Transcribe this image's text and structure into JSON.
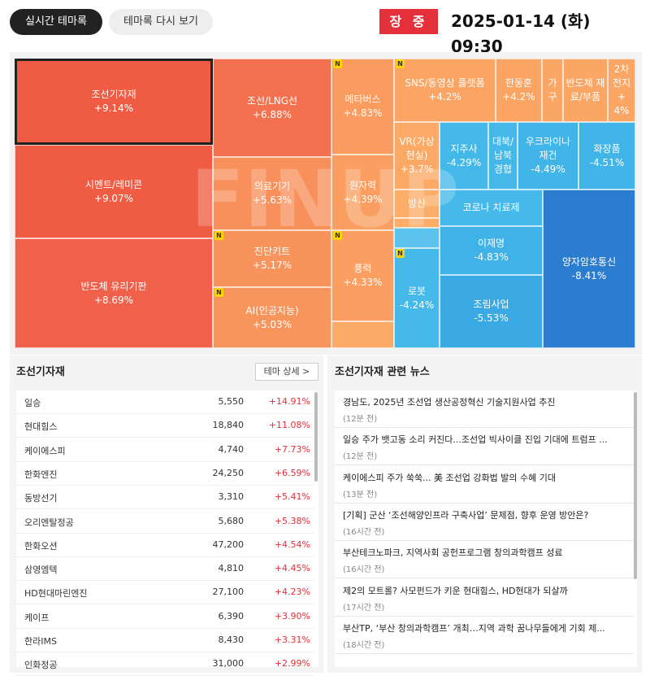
{
  "header": {
    "tabs": [
      "실시간 테마록",
      "테마록 다시 보기"
    ],
    "status": "장 중",
    "datetime": "2025-01-14 (화) 09:30"
  },
  "treemap": {
    "watermark": "FINUP",
    "badge": "N",
    "cells": [
      {
        "name": "조선기자재",
        "change": "+9.14%"
      },
      {
        "name": "시멘트/레미콘",
        "change": "+9.07%"
      },
      {
        "name": "반도체 유리기판",
        "change": "+8.69%"
      },
      {
        "name": "조선/LNG선",
        "change": "+6.88%"
      },
      {
        "name": "의료기기",
        "change": "+5.63%"
      },
      {
        "name": "진단키트",
        "change": "+5.17%",
        "new": true
      },
      {
        "name": "AI(인공지능)",
        "change": "+5.03%",
        "new": true
      },
      {
        "name": "메타버스",
        "change": "+4.83%",
        "new": true
      },
      {
        "name": "원자력",
        "change": "+4.39%"
      },
      {
        "name": "풍력",
        "change": "+4.33%",
        "new": true
      },
      {
        "name": "SNS/동영상 플랫폼",
        "change": "+4.2%",
        "new": true
      },
      {
        "name": "한동훈",
        "change": "+4.2%"
      },
      {
        "name": "가구"
      },
      {
        "name": "반도체 재료/부품"
      },
      {
        "name": "2차전지",
        "change": "+4%"
      },
      {
        "name": "VR(가상현실)",
        "change": "+3.7%"
      },
      {
        "name": "방산"
      },
      {
        "name": "로봇",
        "change": "-4.24%",
        "new": true
      },
      {
        "name": "지주사",
        "change": "-4.29%"
      },
      {
        "name": "대북/남북경협"
      },
      {
        "name": "우크라이나 재건",
        "change": "-4.49%"
      },
      {
        "name": "화장품",
        "change": "-4.51%"
      },
      {
        "name": "코로나 치료제"
      },
      {
        "name": "이재명",
        "change": "-4.83%"
      },
      {
        "name": "조림사업",
        "change": "-5.53%"
      },
      {
        "name": "양자암호통신",
        "change": "-8.41%"
      }
    ]
  },
  "stocks": {
    "title": "조선기자재",
    "button": "테마 상세 >",
    "rows": [
      [
        "일승",
        "5,550",
        "+14.91%"
      ],
      [
        "현대힘스",
        "18,840",
        "+11.08%"
      ],
      [
        "케이에스피",
        "4,740",
        "+7.73%"
      ],
      [
        "한화엔진",
        "24,250",
        "+6.59%"
      ],
      [
        "동방선기",
        "3,310",
        "+5.41%"
      ],
      [
        "오리엔탈정공",
        "5,680",
        "+5.38%"
      ],
      [
        "한화오션",
        "47,200",
        "+4.54%"
      ],
      [
        "삼영엠텍",
        "4,810",
        "+4.45%"
      ],
      [
        "HD현대마린엔진",
        "27,100",
        "+4.23%"
      ],
      [
        "케이프",
        "6,390",
        "+3.90%"
      ],
      [
        "한라IMS",
        "8,430",
        "+3.31%"
      ],
      [
        "인화정공",
        "31,000",
        "+2.99%"
      ]
    ]
  },
  "news": {
    "title": "조선기자재 관련 뉴스",
    "items": [
      {
        "title": "경남도, 2025년 조선업 생산공정혁신 기술지원사업 추진",
        "time": "(12분 전)"
      },
      {
        "title": "일승 주가 뱃고동 소리 커진다...조선업 빅사이클 진입 기대에 트럼프 ...",
        "time": "(12분 전)"
      },
      {
        "title": "케이에스피 주가 쑥쑥... 美 조선업 강화법 발의 수혜 기대",
        "time": "(13분 전)"
      },
      {
        "title": "[기획] 군산 ‘조선해양인프라 구축사업’ 문제점, 향후 운영 방안은?",
        "time": "(16시간 전)"
      },
      {
        "title": "부산테크노파크, 지역사회 공헌프로그램 창의과학캠프 성료",
        "time": "(16시간 전)"
      },
      {
        "title": "제2의 모트롤? 사모펀드가 키운 현대힘스, HD현대가 되살까",
        "time": "(17시간 전)"
      },
      {
        "title": "부산TP, ‘부산 창의과학캠프’ 개최…지역 과학 꿈나무들에게 기회 제...",
        "time": "(18시간 전)"
      }
    ]
  }
}
